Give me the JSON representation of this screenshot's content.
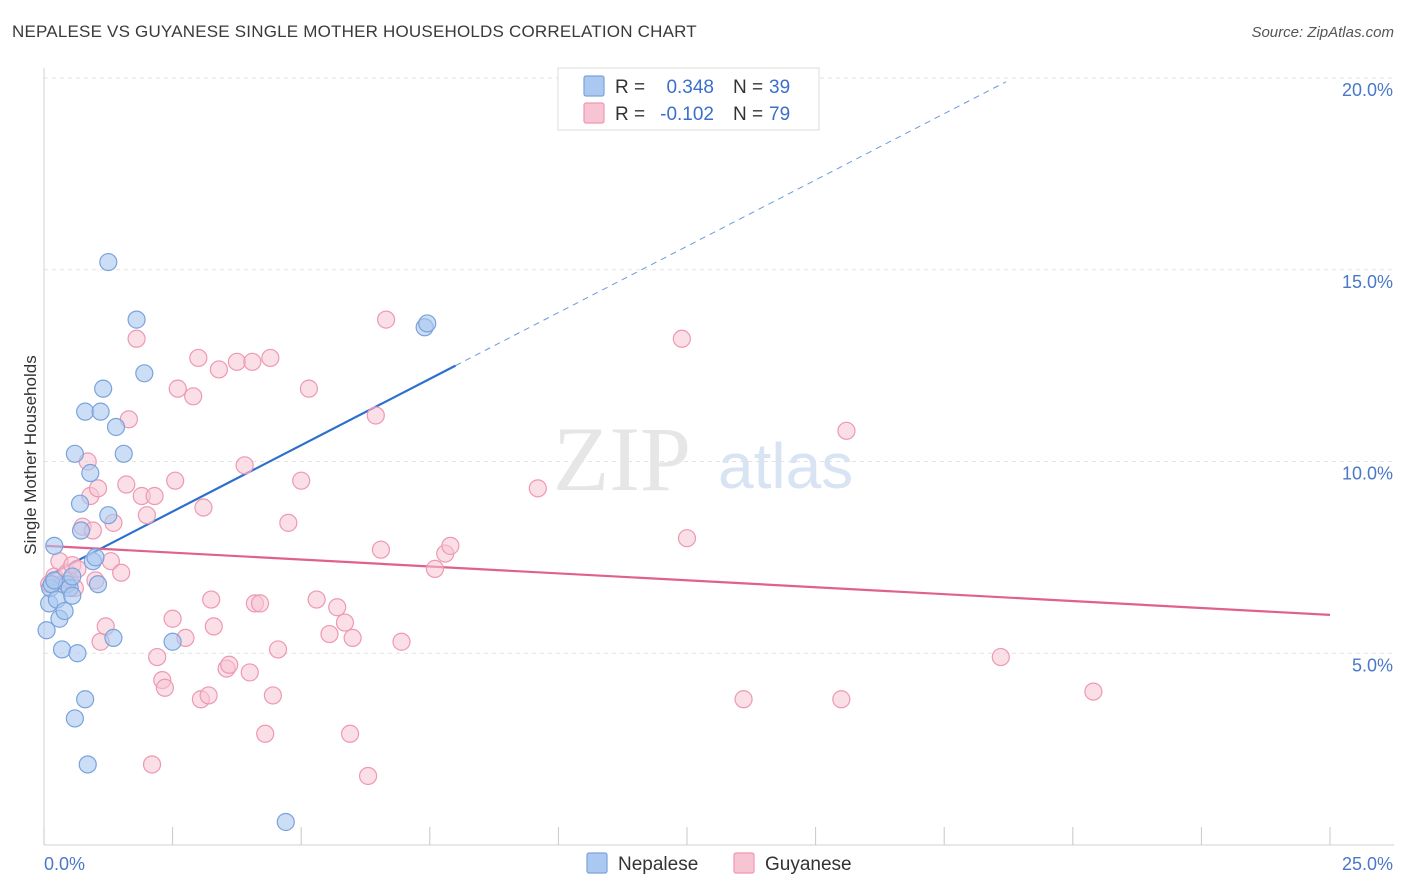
{
  "title": "NEPALESE VS GUYANESE SINGLE MOTHER HOUSEHOLDS CORRELATION CHART",
  "source": "Source: ZipAtlas.com",
  "watermark": {
    "zip": "ZIP",
    "atlas": "atlas"
  },
  "colors": {
    "nepalese_fill": "#aac8f0",
    "nepalese_stroke": "#7aa3dc",
    "nepalese_line": "#2c6fcf",
    "guyanese_fill": "#f7c4d4",
    "guyanese_stroke": "#ee98b4",
    "guyanese_line": "#e0608e",
    "grid": "#e3e3e3",
    "label": "#4a78c8"
  },
  "legend": {
    "rows": [
      {
        "r_label": "R =",
        "r_value": "0.348",
        "n_label": "N =",
        "n_value": "39"
      },
      {
        "r_label": "R =",
        "r_value": "-0.102",
        "n_label": "N =",
        "n_value": "79"
      }
    ],
    "placement": "top-center"
  },
  "bottom_legend": [
    "Nepalese",
    "Guyanese"
  ],
  "chart_data": {
    "type": "scatter",
    "title": "NEPALESE VS GUYANESE SINGLE MOTHER HOUSEHOLDS CORRELATION CHART",
    "xlabel": "",
    "ylabel": "Single Mother Households",
    "xlim": [
      0,
      25
    ],
    "ylim": [
      0,
      20.5
    ],
    "x_ticks": [
      0,
      2.5,
      5,
      7.5,
      10,
      12.5,
      15,
      17.5,
      20,
      22.5,
      25
    ],
    "x_tick_labels": {
      "min": "0.0%",
      "max": "25.0%"
    },
    "y_ticks": [
      5,
      10,
      15,
      20
    ],
    "y_tick_labels": [
      "5.0%",
      "10.0%",
      "15.0%",
      "20.0%"
    ],
    "grid": true,
    "series": [
      {
        "name": "Nepalese",
        "trend": {
          "x0": 0.05,
          "y0": 7.0,
          "x1": 8.0,
          "y1": 12.5,
          "x_dash_end": 18.7,
          "y_dash_end": 19.9
        },
        "points": [
          [
            0.05,
            5.6
          ],
          [
            0.1,
            6.3
          ],
          [
            0.12,
            6.7
          ],
          [
            0.15,
            6.8
          ],
          [
            0.2,
            7.8
          ],
          [
            0.25,
            6.4
          ],
          [
            0.3,
            5.9
          ],
          [
            0.35,
            5.1
          ],
          [
            0.4,
            6.1
          ],
          [
            0.45,
            6.8
          ],
          [
            0.5,
            6.7
          ],
          [
            0.55,
            6.5
          ],
          [
            0.6,
            3.3
          ],
          [
            0.6,
            10.2
          ],
          [
            0.65,
            5.0
          ],
          [
            0.7,
            8.9
          ],
          [
            0.72,
            8.2
          ],
          [
            0.8,
            3.8
          ],
          [
            0.8,
            11.3
          ],
          [
            0.85,
            2.1
          ],
          [
            0.9,
            9.7
          ],
          [
            0.95,
            7.4
          ],
          [
            1.0,
            7.5
          ],
          [
            1.05,
            6.8
          ],
          [
            1.1,
            11.3
          ],
          [
            1.15,
            11.9
          ],
          [
            1.25,
            8.6
          ],
          [
            1.25,
            15.2
          ],
          [
            1.35,
            5.4
          ],
          [
            1.4,
            10.9
          ],
          [
            1.55,
            10.2
          ],
          [
            1.8,
            13.7
          ],
          [
            1.95,
            12.3
          ],
          [
            2.5,
            5.3
          ],
          [
            4.7,
            0.6
          ],
          [
            7.4,
            13.5
          ],
          [
            7.45,
            13.6
          ],
          [
            0.2,
            6.9
          ],
          [
            0.55,
            7.0
          ]
        ]
      },
      {
        "name": "Guyanese",
        "trend": {
          "x0": 0.05,
          "y0": 7.8,
          "x1": 25.0,
          "y1": 6.0
        },
        "points": [
          [
            0.1,
            6.8
          ],
          [
            0.2,
            7.0
          ],
          [
            0.3,
            7.4
          ],
          [
            0.35,
            6.8
          ],
          [
            0.45,
            7.1
          ],
          [
            0.5,
            6.9
          ],
          [
            0.55,
            7.3
          ],
          [
            0.6,
            6.7
          ],
          [
            0.75,
            8.3
          ],
          [
            0.85,
            10.0
          ],
          [
            0.9,
            9.1
          ],
          [
            0.95,
            8.2
          ],
          [
            1.05,
            9.3
          ],
          [
            1.1,
            5.3
          ],
          [
            1.2,
            5.7
          ],
          [
            1.3,
            7.4
          ],
          [
            1.35,
            8.4
          ],
          [
            1.5,
            7.1
          ],
          [
            1.6,
            9.4
          ],
          [
            1.65,
            11.1
          ],
          [
            1.8,
            13.2
          ],
          [
            1.9,
            9.1
          ],
          [
            2.0,
            8.6
          ],
          [
            2.1,
            2.1
          ],
          [
            2.15,
            9.1
          ],
          [
            2.2,
            4.9
          ],
          [
            2.3,
            4.3
          ],
          [
            2.35,
            4.1
          ],
          [
            2.5,
            5.9
          ],
          [
            2.55,
            9.5
          ],
          [
            2.6,
            11.9
          ],
          [
            2.75,
            5.4
          ],
          [
            2.9,
            11.7
          ],
          [
            3.0,
            12.7
          ],
          [
            3.05,
            3.8
          ],
          [
            3.1,
            8.8
          ],
          [
            3.2,
            3.9
          ],
          [
            3.25,
            6.4
          ],
          [
            3.3,
            5.7
          ],
          [
            3.4,
            12.4
          ],
          [
            3.55,
            4.6
          ],
          [
            3.6,
            4.7
          ],
          [
            3.75,
            12.6
          ],
          [
            3.9,
            9.9
          ],
          [
            4.0,
            4.5
          ],
          [
            4.05,
            12.6
          ],
          [
            4.1,
            6.3
          ],
          [
            4.2,
            6.3
          ],
          [
            4.3,
            2.9
          ],
          [
            4.4,
            12.7
          ],
          [
            4.45,
            3.9
          ],
          [
            4.55,
            5.1
          ],
          [
            4.75,
            8.4
          ],
          [
            5.0,
            9.5
          ],
          [
            5.15,
            11.9
          ],
          [
            5.3,
            6.4
          ],
          [
            5.55,
            5.5
          ],
          [
            5.7,
            6.2
          ],
          [
            5.85,
            5.8
          ],
          [
            5.95,
            2.9
          ],
          [
            6.0,
            5.4
          ],
          [
            6.3,
            1.8
          ],
          [
            6.45,
            11.2
          ],
          [
            6.55,
            7.7
          ],
          [
            6.65,
            13.7
          ],
          [
            6.95,
            5.3
          ],
          [
            7.6,
            7.2
          ],
          [
            7.8,
            7.6
          ],
          [
            7.9,
            7.8
          ],
          [
            9.6,
            9.3
          ],
          [
            12.4,
            13.2
          ],
          [
            12.5,
            8.0
          ],
          [
            13.6,
            3.8
          ],
          [
            15.5,
            3.8
          ],
          [
            15.6,
            10.8
          ],
          [
            18.6,
            4.9
          ],
          [
            20.4,
            4.0
          ],
          [
            0.65,
            7.2
          ],
          [
            1.0,
            6.9
          ]
        ]
      }
    ]
  }
}
